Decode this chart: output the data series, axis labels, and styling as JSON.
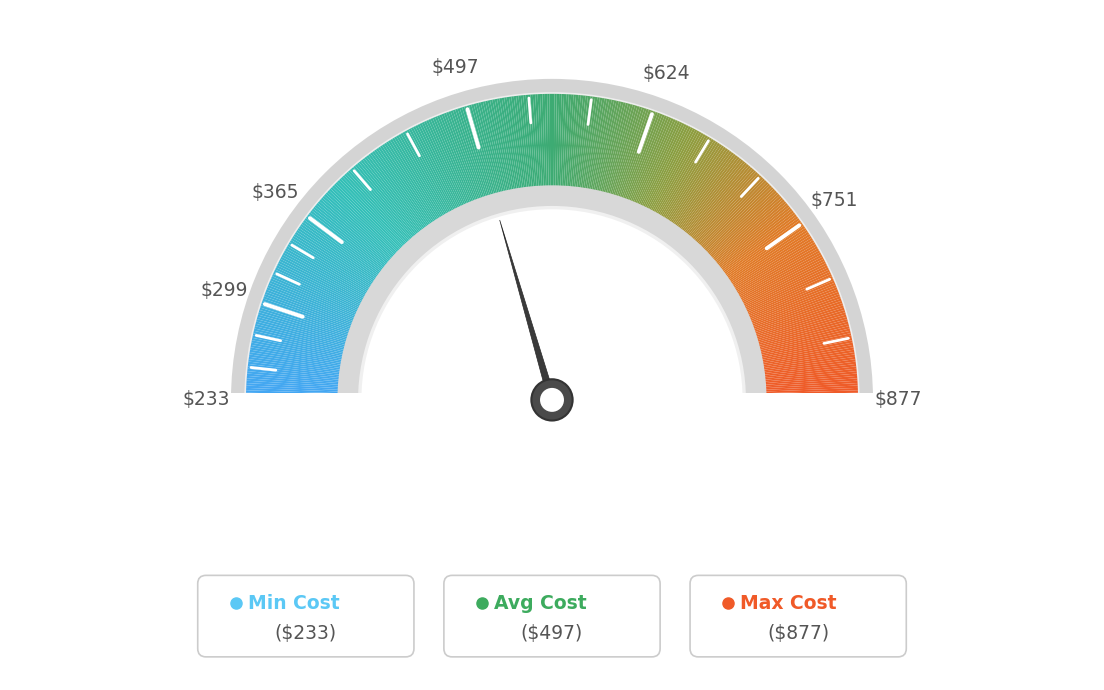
{
  "min_val": 233,
  "max_val": 877,
  "avg_val": 497,
  "tick_labels": [
    "$233",
    "$299",
    "$365",
    "$497",
    "$624",
    "$751",
    "$877"
  ],
  "tick_values": [
    233,
    299,
    365,
    497,
    624,
    751,
    877
  ],
  "legend": [
    {
      "label": "Min Cost",
      "value": "($233)",
      "color": "#5bc8f5"
    },
    {
      "label": "Avg Cost",
      "value": "($497)",
      "color": "#3dab5e"
    },
    {
      "label": "Max Cost",
      "value": "($877)",
      "color": "#f05a28"
    }
  ],
  "background_color": "#ffffff",
  "needle_value": 497,
  "color_stops": [
    [
      0.0,
      [
        0.27,
        0.65,
        0.96
      ]
    ],
    [
      0.25,
      [
        0.2,
        0.75,
        0.72
      ]
    ],
    [
      0.5,
      [
        0.24,
        0.67,
        0.45
      ]
    ],
    [
      0.65,
      [
        0.55,
        0.62,
        0.25
      ]
    ],
    [
      0.8,
      [
        0.88,
        0.48,
        0.15
      ]
    ],
    [
      1.0,
      [
        0.94,
        0.35,
        0.16
      ]
    ]
  ]
}
